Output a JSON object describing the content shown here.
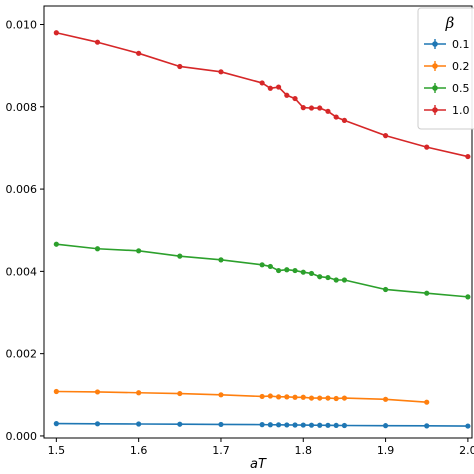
{
  "chart_data": {
    "type": "line",
    "title": "",
    "xlabel": "aT",
    "ylabel": "",
    "xlim": [
      1.485,
      2.005
    ],
    "ylim": [
      -5e-05,
      0.01045
    ],
    "x_ticks": [
      1.5,
      1.6,
      1.7,
      1.8,
      1.9,
      2.0
    ],
    "x_tick_labels": [
      "1.5",
      "1.6",
      "1.7",
      "1.8",
      "1.9",
      "2.0"
    ],
    "y_ticks": [
      0.0,
      0.002,
      0.004,
      0.006,
      0.008,
      0.01
    ],
    "y_tick_labels": [
      "0.000",
      "0.002",
      "0.004",
      "0.006",
      "0.008",
      "0.010"
    ],
    "grid": false,
    "legend": {
      "title": "β",
      "placement": "top-right",
      "entries": [
        "0.1",
        "0.2",
        "0.5",
        "1.0"
      ]
    },
    "series": [
      {
        "name": "0.1",
        "color": "#1f77b4",
        "x": [
          1.5,
          1.55,
          1.6,
          1.65,
          1.7,
          1.75,
          1.76,
          1.77,
          1.78,
          1.79,
          1.8,
          1.81,
          1.82,
          1.83,
          1.84,
          1.85,
          1.9,
          1.95,
          2.0
        ],
        "y": [
          0.0003,
          0.000295,
          0.00029,
          0.000285,
          0.00028,
          0.000275,
          0.000272,
          0.00027,
          0.000268,
          0.000266,
          0.000264,
          0.000262,
          0.00026,
          0.000258,
          0.000256,
          0.000254,
          0.00025,
          0.000245,
          0.00024
        ]
      },
      {
        "name": "0.2",
        "color": "#ff7f0e",
        "x": [
          1.5,
          1.55,
          1.6,
          1.65,
          1.7,
          1.75,
          1.76,
          1.77,
          1.78,
          1.79,
          1.8,
          1.81,
          1.82,
          1.83,
          1.84,
          1.85,
          1.9,
          1.95
        ],
        "y": [
          0.00108,
          0.00107,
          0.00105,
          0.00103,
          0.001,
          0.00096,
          0.00097,
          0.00095,
          0.00095,
          0.00094,
          0.00094,
          0.00092,
          0.00092,
          0.00092,
          0.00091,
          0.00092,
          0.00089,
          0.00082
        ]
      },
      {
        "name": "0.5",
        "color": "#2ca02c",
        "x": [
          1.5,
          1.55,
          1.6,
          1.65,
          1.7,
          1.75,
          1.76,
          1.77,
          1.78,
          1.79,
          1.8,
          1.81,
          1.82,
          1.83,
          1.84,
          1.85,
          1.9,
          1.95,
          2.0
        ],
        "y": [
          0.00466,
          0.00455,
          0.0045,
          0.00437,
          0.00428,
          0.00416,
          0.00412,
          0.00402,
          0.00404,
          0.00402,
          0.00398,
          0.00395,
          0.00387,
          0.00385,
          0.00379,
          0.00379,
          0.00356,
          0.00347,
          0.00338
        ]
      },
      {
        "name": "1.0",
        "color": "#d62728",
        "x": [
          1.5,
          1.55,
          1.6,
          1.65,
          1.7,
          1.75,
          1.76,
          1.77,
          1.78,
          1.79,
          1.8,
          1.81,
          1.82,
          1.83,
          1.84,
          1.85,
          1.9,
          1.95,
          2.0
        ],
        "y": [
          0.0098,
          0.00957,
          0.0093,
          0.00898,
          0.00885,
          0.00858,
          0.00845,
          0.00848,
          0.00828,
          0.0082,
          0.00798,
          0.00797,
          0.00797,
          0.00789,
          0.00775,
          0.00767,
          0.0073,
          0.00702,
          0.00679
        ]
      }
    ]
  }
}
